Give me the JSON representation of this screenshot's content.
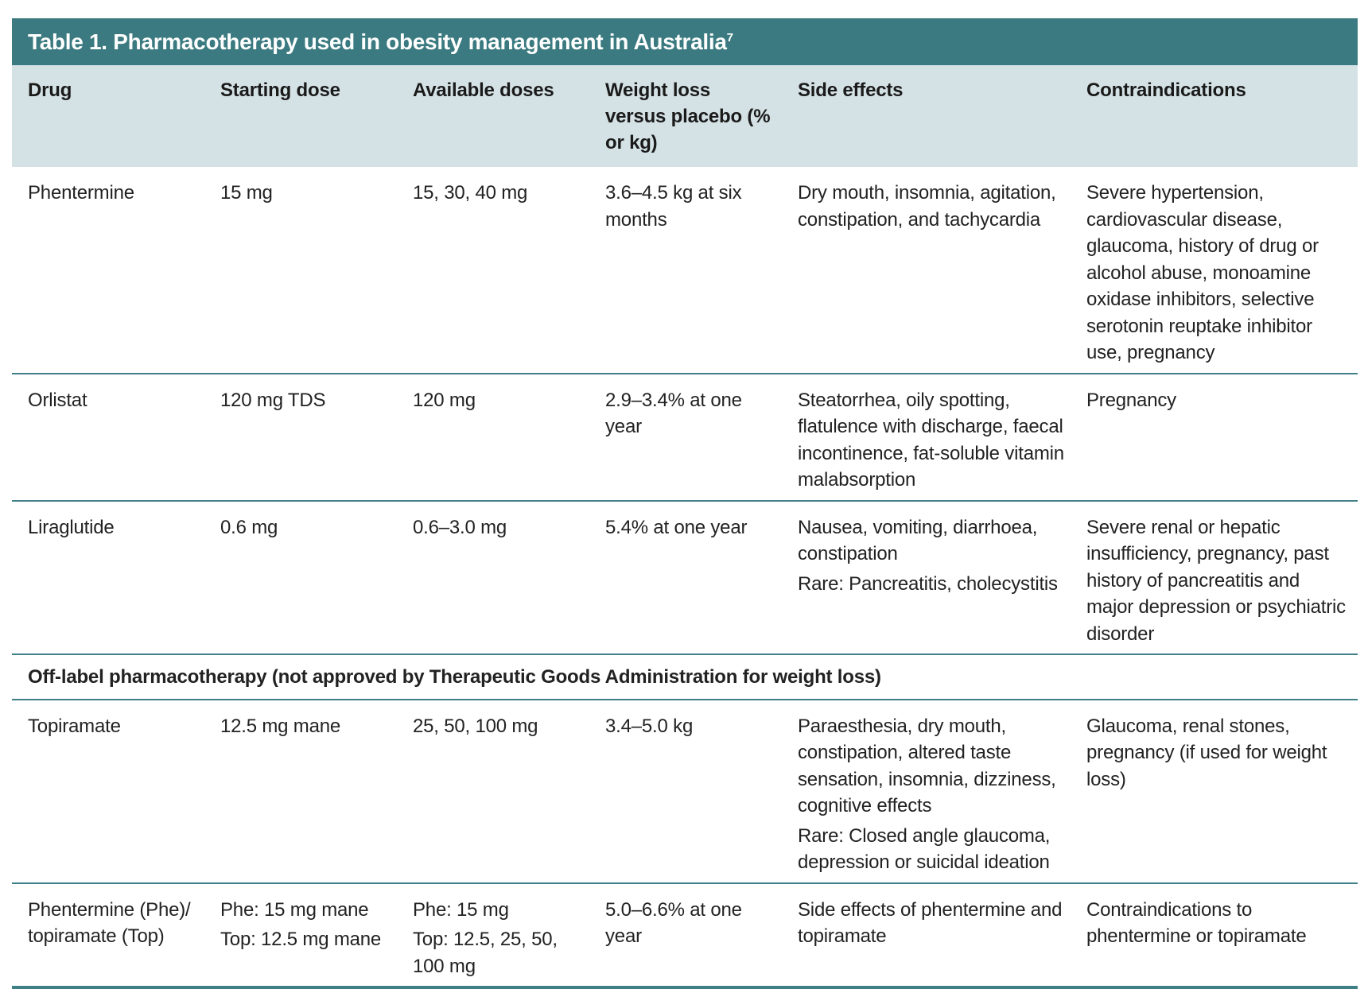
{
  "table": {
    "title": "Table 1. Pharmacotherapy used in obesity management in Australia",
    "title_ref": "7",
    "headers": [
      "Drug",
      "Starting dose",
      "Available doses",
      "Weight loss versus placebo (% or kg)",
      "Side effects",
      "Contraindications"
    ],
    "rows": [
      {
        "drug": "Phentermine",
        "starting_dose": [
          "15 mg"
        ],
        "available_doses": [
          "15, 30, 40 mg"
        ],
        "weight_loss": "3.6–4.5 kg at six months",
        "side_effects": [
          "Dry mouth, insomnia, agitation, constipation, and tachycardia"
        ],
        "contraindications": "Severe hypertension, cardiovascular disease, glaucoma, history of drug or alcohol abuse, monoamine oxidase inhibitors, selective serotonin reuptake inhibitor use, pregnancy"
      },
      {
        "drug": "Orlistat",
        "starting_dose": [
          "120 mg TDS"
        ],
        "available_doses": [
          "120 mg"
        ],
        "weight_loss": "2.9–3.4% at one year",
        "side_effects": [
          "Steatorrhea, oily spotting, flatulence with discharge, faecal incontinence, fat-soluble vitamin malabsorption"
        ],
        "contraindications": "Pregnancy"
      },
      {
        "drug": "Liraglutide",
        "starting_dose": [
          "0.6 mg"
        ],
        "available_doses": [
          "0.6–3.0 mg"
        ],
        "weight_loss": "5.4% at one year",
        "side_effects": [
          "Nausea, vomiting, diarrhoea, constipation",
          "Rare: Pancreatitis, cholecystitis"
        ],
        "contraindications": "Severe renal or hepatic insufficiency, pregnancy, past history of pancreatitis and major depression or psychiatric disorder"
      }
    ],
    "section_label": "Off-label pharmacotherapy (not approved by Therapeutic Goods Administration for weight loss)",
    "offlabel_rows": [
      {
        "drug": "Topiramate",
        "starting_dose": [
          "12.5 mg mane"
        ],
        "available_doses": [
          "25, 50, 100 mg"
        ],
        "weight_loss": "3.4–5.0 kg",
        "side_effects": [
          "Paraesthesia, dry mouth, constipation, altered taste sensation, insomnia, dizziness, cognitive effects",
          "Rare: Closed angle glaucoma, depression or suicidal ideation"
        ],
        "contraindications": "Glaucoma, renal stones, pregnancy (if used for weight loss)"
      },
      {
        "drug": "Phentermine (Phe)/ topiramate (Top)",
        "starting_dose": [
          "Phe: 15 mg mane",
          "Top: 12.5 mg mane"
        ],
        "available_doses": [
          "Phe: 15 mg",
          "Top: 12.5, 25, 50, 100 mg"
        ],
        "weight_loss": "5.0–6.6% at one year",
        "side_effects": [
          "Side effects of phentermine and topiramate"
        ],
        "contraindications": "Contraindications to phentermine or topiramate"
      }
    ]
  },
  "colors": {
    "title_bar": "#3a7a80",
    "header_bg": "#d5e2e5",
    "row_rule": "#3f7f86"
  }
}
